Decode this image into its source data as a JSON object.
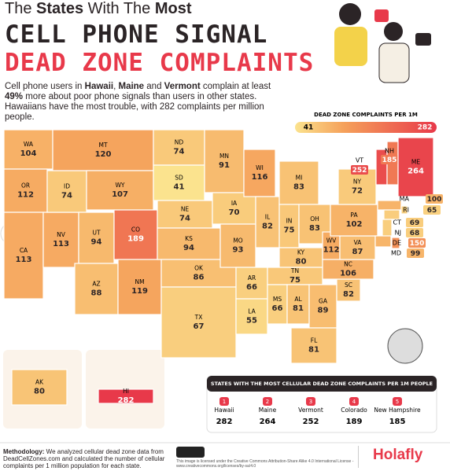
{
  "header": {
    "title_line1": [
      "The ",
      "States",
      " With The ",
      "Most"
    ],
    "title_line2": "CELL PHONE SIGNAL",
    "title_line3": "DEAD ZONE COMPLAINTS",
    "intro": [
      "Cell phone users in ",
      "Hawaii",
      ", ",
      "Maine",
      " and ",
      "Vermont",
      " complain at least ",
      "49%",
      " more about poor phone signals than users in other states. Hawaiians have the most trouble, with 282 complaints per million people."
    ]
  },
  "legend": {
    "title": "DEAD ZONE COMPLAINTS PER 1M",
    "min": 41,
    "max": 282
  },
  "states": [
    {
      "abbr": "WA",
      "value": 104
    },
    {
      "abbr": "OR",
      "value": 112
    },
    {
      "abbr": "CA",
      "value": 113
    },
    {
      "abbr": "NV",
      "value": 113
    },
    {
      "abbr": "ID",
      "value": 74
    },
    {
      "abbr": "MT",
      "value": 120
    },
    {
      "abbr": "WY",
      "value": 107
    },
    {
      "abbr": "UT",
      "value": 94
    },
    {
      "abbr": "AZ",
      "value": 88
    },
    {
      "abbr": "CO",
      "value": 189
    },
    {
      "abbr": "NM",
      "value": 119
    },
    {
      "abbr": "ND",
      "value": 74
    },
    {
      "abbr": "SD",
      "value": 41
    },
    {
      "abbr": "NE",
      "value": 74
    },
    {
      "abbr": "KS",
      "value": 94
    },
    {
      "abbr": "OK",
      "value": 86
    },
    {
      "abbr": "TX",
      "value": 67
    },
    {
      "abbr": "MN",
      "value": 91
    },
    {
      "abbr": "IA",
      "value": 70
    },
    {
      "abbr": "MO",
      "value": 93
    },
    {
      "abbr": "AR",
      "value": 66
    },
    {
      "abbr": "LA",
      "value": 55
    },
    {
      "abbr": "WI",
      "value": 116
    },
    {
      "abbr": "IL",
      "value": 82
    },
    {
      "abbr": "MI",
      "value": 83
    },
    {
      "abbr": "IN",
      "value": 75
    },
    {
      "abbr": "OH",
      "value": 83
    },
    {
      "abbr": "KY",
      "value": 80
    },
    {
      "abbr": "WV",
      "value": 112
    },
    {
      "abbr": "TN",
      "value": 75
    },
    {
      "abbr": "MS",
      "value": 66
    },
    {
      "abbr": "AL",
      "value": 81
    },
    {
      "abbr": "GA",
      "value": 89
    },
    {
      "abbr": "FL",
      "value": 81
    },
    {
      "abbr": "SC",
      "value": 82
    },
    {
      "abbr": "NC",
      "value": 106
    },
    {
      "abbr": "VA",
      "value": 87
    },
    {
      "abbr": "PA",
      "value": 102
    },
    {
      "abbr": "NY",
      "value": 72
    },
    {
      "abbr": "VT",
      "value": 252
    },
    {
      "abbr": "NH",
      "value": 185
    },
    {
      "abbr": "ME",
      "value": 264
    },
    {
      "abbr": "MA",
      "value": 100
    },
    {
      "abbr": "RI",
      "value": 65
    },
    {
      "abbr": "CT",
      "value": 69
    },
    {
      "abbr": "NJ",
      "value": 68
    },
    {
      "abbr": "DE",
      "value": 150
    },
    {
      "abbr": "MD",
      "value": 99
    },
    {
      "abbr": "AK",
      "value": 80
    },
    {
      "abbr": "HI",
      "value": 282
    }
  ],
  "top_states": {
    "title": "STATES WITH THE MOST CELLULAR DEAD ZONE COMPLAINTS PER 1M PEOPLE",
    "items": [
      {
        "rank": 1,
        "name": "Hawaii",
        "value": 282
      },
      {
        "rank": 2,
        "name": "Maine",
        "value": 264
      },
      {
        "rank": 3,
        "name": "Vermont",
        "value": 252
      },
      {
        "rank": 4,
        "name": "Colorado",
        "value": 189
      },
      {
        "rank": 5,
        "name": "New Hampshire",
        "value": 185
      }
    ]
  },
  "footer": {
    "methodology_label": "Methodology:",
    "methodology": " We analyzed cellular dead zone data from DeadCellZones.com and calculated the number of cellular complaints per 1 million population for each state.",
    "license": "This image is licensed under the Creative Commons Attribution-Share Alike 4.0 International License - www.creativecommons.org/licenses/by-sa/4.0",
    "brand": "Holafly"
  }
}
